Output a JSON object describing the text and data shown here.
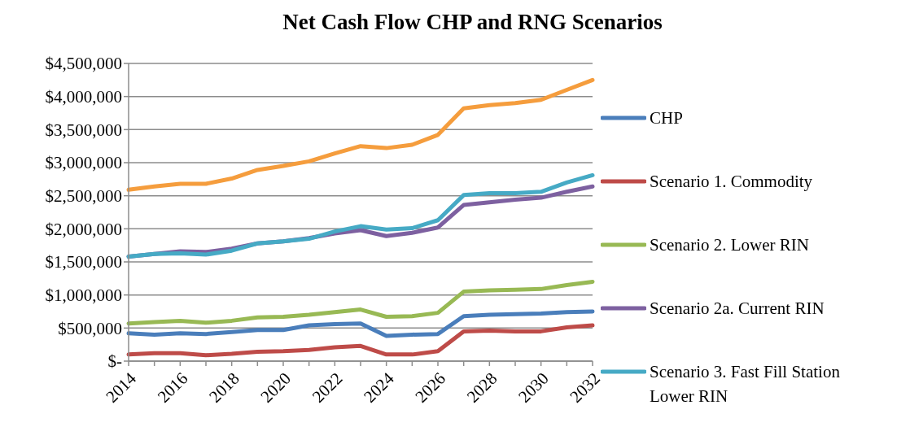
{
  "chart_data": {
    "type": "line",
    "title": "Net Cash Flow CHP and RNG Scenarios",
    "categories": [
      "2014",
      null,
      "2016",
      null,
      "2018",
      null,
      "2020",
      null,
      "2022",
      null,
      "2024",
      null,
      "2026",
      null,
      "2028",
      null,
      "2030",
      null,
      "2032"
    ],
    "series": [
      {
        "name": "CHP",
        "color": "#4a7ebb",
        "values": [
          420000,
          400000,
          420000,
          410000,
          440000,
          470000,
          470000,
          540000,
          560000,
          570000,
          380000,
          400000,
          410000,
          680000,
          700000,
          710000,
          720000,
          740000,
          750000
        ]
      },
      {
        "name": "Scenario 1. Commodity",
        "color": "#be4b48",
        "values": [
          100000,
          120000,
          120000,
          90000,
          110000,
          140000,
          150000,
          170000,
          210000,
          230000,
          100000,
          100000,
          150000,
          450000,
          460000,
          450000,
          450000,
          510000,
          540000
        ]
      },
      {
        "name": "Scenario 2. Lower RIN",
        "color": "#98b954",
        "values": [
          570000,
          590000,
          610000,
          580000,
          610000,
          660000,
          670000,
          700000,
          740000,
          780000,
          670000,
          680000,
          730000,
          1050000,
          1070000,
          1080000,
          1090000,
          1150000,
          1200000
        ]
      },
      {
        "name": "Scenario 2a. Current RIN",
        "color": "#7d60a0",
        "values": [
          1580000,
          1620000,
          1660000,
          1650000,
          1700000,
          1780000,
          1810000,
          1860000,
          1930000,
          1980000,
          1890000,
          1940000,
          2020000,
          2360000,
          2400000,
          2440000,
          2470000,
          2560000,
          2640000
        ]
      },
      {
        "name": "Scenario 3. Fast Fill Station Lower RIN",
        "color": "#46aac5",
        "values": [
          1580000,
          1620000,
          1630000,
          1610000,
          1670000,
          1780000,
          1810000,
          1850000,
          1960000,
          2040000,
          1990000,
          2010000,
          2130000,
          2510000,
          2540000,
          2540000,
          2560000,
          2700000,
          2810000
        ]
      },
      {
        "color": "#f59d3d",
        "values": [
          2590000,
          2640000,
          2680000,
          2680000,
          2760000,
          2890000,
          2950000,
          3020000,
          3140000,
          3250000,
          3220000,
          3270000,
          3420000,
          3820000,
          3870000,
          3900000,
          3950000,
          4100000,
          4250000
        ]
      }
    ],
    "ylim": [
      0,
      4500000
    ],
    "yticks": [
      {
        "value": 0,
        "label": "$-"
      },
      {
        "value": 500000,
        "label": "$500,000"
      },
      {
        "value": 1000000,
        "label": "$1,000,000"
      },
      {
        "value": 1500000,
        "label": "$1,500,000"
      },
      {
        "value": 2000000,
        "label": "$2,000,000"
      },
      {
        "value": 2500000,
        "label": "$2,500,000"
      },
      {
        "value": 3000000,
        "label": "$3,000,000"
      },
      {
        "value": 3500000,
        "label": "$3,500,000"
      },
      {
        "value": 4000000,
        "label": "$4,000,000"
      },
      {
        "value": 4500000,
        "label": "$4,500,000"
      }
    ],
    "grid": "y",
    "legend": "right",
    "marker": "none",
    "line_style": "solid"
  }
}
